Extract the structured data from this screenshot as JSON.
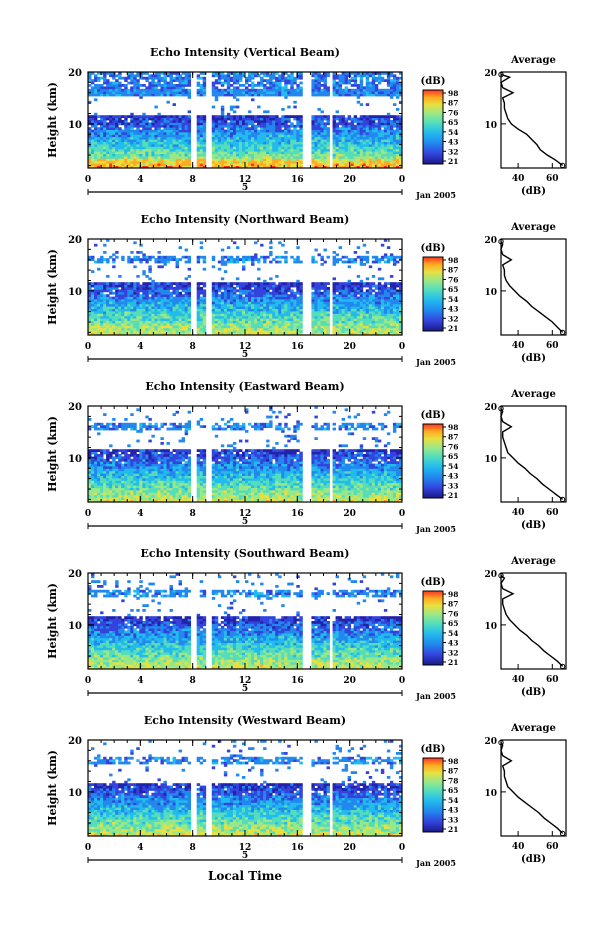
{
  "page_type": "multi-panel radar echo intensity figure",
  "common": {
    "height_axis_label": "Height (km)",
    "height_ticks": [
      "20",
      "10"
    ],
    "time_ticks": [
      "0",
      "4",
      "8",
      "12",
      "16",
      "20",
      "0"
    ],
    "day_label": "5",
    "date_label": "Jan 2005",
    "colorbar_title": "(dB)",
    "colorbar_ticks": [
      "98",
      "87",
      "76",
      "65",
      "54",
      "43",
      "32",
      "21"
    ],
    "colorbar_ticks_alt": [
      "98",
      "87",
      "76",
      "65",
      "54",
      "43",
      "33",
      "21"
    ],
    "colorbar_ticks_alt2": [
      "98",
      "87",
      "78",
      "65",
      "54",
      "43",
      "33",
      "21"
    ],
    "profile_title": "Average",
    "profile_xticks": [
      "40",
      "60"
    ],
    "profile_xlabel": "(dB)",
    "profile_yticks": [
      "20",
      "10"
    ],
    "xlabel": "Local Time"
  },
  "panels": [
    {
      "title": "Echo Intensity (Vertical Beam)"
    },
    {
      "title": "Echo Intensity (Northward Beam)"
    },
    {
      "title": "Echo Intensity (Eastward Beam)"
    },
    {
      "title": "Echo Intensity (Southward Beam)"
    },
    {
      "title": "Echo Intensity (Westward Beam)"
    }
  ],
  "chart_data": [
    {
      "type": "heatmap",
      "title": "Echo Intensity (Vertical Beam)",
      "ylabel": "Height (km)",
      "ylim": [
        1.5,
        20
      ],
      "xlim": [
        0,
        24
      ],
      "colorbar": {
        "label": "(dB)",
        "range": [
          21,
          98
        ]
      },
      "data_gaps_hours": [
        [
          7.9,
          8.4
        ],
        [
          9.1,
          9.5
        ],
        [
          16.5,
          17.0
        ],
        [
          18.5,
          18.8
        ]
      ],
      "profile": {
        "title": "Average",
        "xlabel": "(dB)",
        "xlim": [
          30,
          68
        ],
        "height": [
          2,
          3,
          4,
          5,
          6,
          7,
          8,
          9,
          10,
          11,
          12,
          13,
          14,
          15,
          16,
          17,
          18,
          19,
          19.5
        ],
        "db": [
          66,
          62,
          57,
          53,
          51,
          48,
          45,
          40,
          36,
          34,
          33,
          32,
          32,
          31,
          37,
          31,
          30,
          35,
          30
        ]
      }
    },
    {
      "type": "heatmap",
      "title": "Echo Intensity (Northward Beam)",
      "ylabel": "Height (km)",
      "ylim": [
        1.5,
        20
      ],
      "xlim": [
        0,
        24
      ],
      "colorbar": {
        "label": "(dB)",
        "range": [
          21,
          98
        ]
      },
      "data_gaps_hours": [
        [
          7.9,
          8.4
        ],
        [
          9.1,
          9.5
        ],
        [
          16.5,
          17.0
        ],
        [
          18.5,
          18.8
        ]
      ],
      "profile": {
        "title": "Average",
        "xlabel": "(dB)",
        "xlim": [
          30,
          68
        ],
        "height": [
          2,
          3,
          4,
          5,
          6,
          7,
          8,
          9,
          10,
          11,
          12,
          13,
          14,
          15,
          16,
          17,
          18,
          19,
          19.5
        ],
        "db": [
          66,
          63,
          60,
          56,
          52,
          48,
          45,
          41,
          38,
          35,
          33,
          32,
          32,
          31,
          36,
          31,
          30,
          31,
          30
        ]
      }
    },
    {
      "type": "heatmap",
      "title": "Echo Intensity (Eastward Beam)",
      "ylabel": "Height (km)",
      "ylim": [
        1.5,
        20
      ],
      "xlim": [
        0,
        24
      ],
      "colorbar": {
        "label": "(dB)",
        "range": [
          21,
          98
        ]
      },
      "data_gaps_hours": [
        [
          7.9,
          8.4
        ],
        [
          9.1,
          9.5
        ],
        [
          16.5,
          17.0
        ],
        [
          18.5,
          18.8
        ]
      ],
      "profile": {
        "title": "Average",
        "xlabel": "(dB)",
        "xlim": [
          30,
          68
        ],
        "height": [
          2,
          3,
          4,
          5,
          6,
          7,
          8,
          9,
          10,
          11,
          12,
          13,
          14,
          15,
          16,
          17,
          18,
          19,
          19.5
        ],
        "db": [
          66,
          62,
          58,
          54,
          51,
          47,
          44,
          40,
          37,
          34,
          33,
          32,
          31,
          31,
          36,
          31,
          30,
          31,
          30
        ]
      }
    },
    {
      "type": "heatmap",
      "title": "Echo Intensity (Southward Beam)",
      "ylabel": "Height (km)",
      "ylim": [
        1.5,
        20
      ],
      "xlim": [
        0,
        24
      ],
      "colorbar": {
        "label": "(dB)",
        "range": [
          21,
          98
        ]
      },
      "data_gaps_hours": [
        [
          7.9,
          8.4
        ],
        [
          9.1,
          9.5
        ],
        [
          16.5,
          17.0
        ],
        [
          18.5,
          18.8
        ]
      ],
      "profile": {
        "title": "Average",
        "xlabel": "(dB)",
        "xlim": [
          30,
          68
        ],
        "height": [
          2,
          3,
          4,
          5,
          6,
          7,
          8,
          9,
          10,
          11,
          12,
          13,
          14,
          15,
          16,
          17,
          18,
          19,
          19.5
        ],
        "db": [
          66,
          63,
          59,
          55,
          52,
          48,
          45,
          41,
          38,
          35,
          33,
          32,
          31,
          31,
          37,
          31,
          30,
          32,
          30
        ]
      }
    },
    {
      "type": "heatmap",
      "title": "Echo Intensity (Westward Beam)",
      "ylabel": "Height (km)",
      "ylim": [
        1.5,
        20
      ],
      "xlim": [
        0,
        24
      ],
      "colorbar": {
        "label": "(dB)",
        "range": [
          21,
          98
        ]
      },
      "data_gaps_hours": [
        [
          7.9,
          8.4
        ],
        [
          9.1,
          9.5
        ],
        [
          16.5,
          17.0
        ],
        [
          18.5,
          18.8
        ]
      ],
      "profile": {
        "title": "Average",
        "xlabel": "(dB)",
        "xlim": [
          30,
          68
        ],
        "height": [
          2,
          3,
          4,
          5,
          6,
          7,
          8,
          9,
          10,
          11,
          12,
          13,
          14,
          15,
          16,
          17,
          18,
          19,
          19.5
        ],
        "db": [
          66,
          63,
          59,
          55,
          52,
          48,
          44,
          40,
          37,
          34,
          33,
          32,
          32,
          31,
          36,
          31,
          30,
          31,
          30
        ]
      }
    }
  ],
  "colors": {
    "colormap": [
      "#2222aa",
      "#3344dd",
      "#2288ee",
      "#22bbee",
      "#55ddbb",
      "#99e888",
      "#e8e040",
      "#ffaa22",
      "#ff3322"
    ]
  }
}
